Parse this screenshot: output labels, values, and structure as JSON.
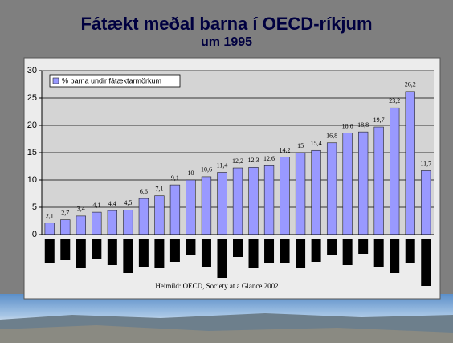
{
  "chart_data": {
    "type": "bar",
    "title": "Fátækt meðal barna í OECD-ríkjum",
    "subtitle": "um 1995",
    "source": "Heimild: OECD, Society at a Glance 2002",
    "categories": [
      null,
      null,
      null,
      null,
      null,
      null,
      null,
      null,
      null,
      null,
      null,
      null,
      null,
      null,
      null,
      null,
      null,
      null,
      null,
      null,
      null,
      null,
      null,
      null,
      null
    ],
    "series": [
      {
        "name": "% barna undir fátæktarmörkum",
        "color": "#9999ff",
        "values": [
          2.1,
          2.7,
          3.4,
          4.1,
          4.4,
          4.5,
          6.6,
          7.1,
          9.1,
          10,
          10.6,
          11.4,
          12.2,
          12.3,
          12.6,
          14.2,
          15,
          15.4,
          16.8,
          18.6,
          18.8,
          19.7,
          23.2,
          26.2,
          11.7
        ],
        "value_labels": [
          "2,1",
          "2,7",
          "3,4",
          "4,1",
          "4,4",
          "4,5",
          "6,6",
          "7,1",
          "9,1",
          "10",
          "10,6",
          "11,4",
          "12,2",
          "12,3",
          "12,6",
          "14,2",
          "15",
          "15,4",
          "16,8",
          "18,6",
          "18,8",
          "19,7",
          "23,2",
          "26,2",
          "11,7"
        ]
      }
    ],
    "ylim": [
      0,
      30
    ],
    "yticks": [
      0,
      5,
      10,
      15,
      20,
      25,
      30
    ],
    "grid": true
  }
}
